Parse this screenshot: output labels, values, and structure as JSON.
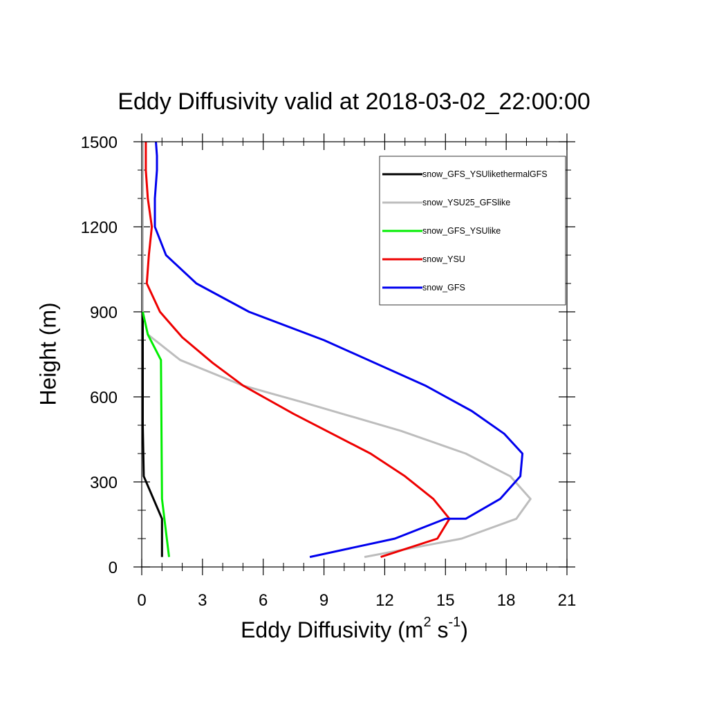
{
  "chart_data": {
    "type": "line",
    "title": "Eddy Diffusivity valid at 2018-03-02_22:00:00",
    "xlabel": {
      "text": "Eddy Diffusivity (m",
      "sup1": "2",
      "mid": " s",
      "sup2": "-1",
      "end": ")"
    },
    "ylabel": "Height (m)",
    "xlim": [
      0,
      21
    ],
    "ylim": [
      0,
      1500
    ],
    "xticks": [
      0,
      3,
      6,
      9,
      12,
      15,
      18,
      21
    ],
    "xtick_labels": [
      "0",
      "3",
      "6",
      "9",
      "12",
      "15",
      "18",
      "21"
    ],
    "yticks": [
      0,
      300,
      600,
      900,
      1200,
      1500
    ],
    "ytick_labels": [
      "0",
      "300",
      "600",
      "900",
      "1200",
      "1500"
    ],
    "grid": false,
    "legend_position": "top-right",
    "series": [
      {
        "name": "snow_GFS_YSUlikethermalGFS",
        "color": "#000000",
        "points": [
          [
            1.0,
            35
          ],
          [
            1.0,
            170
          ],
          [
            0.1,
            320
          ],
          [
            0.05,
            500
          ],
          [
            0.05,
            900
          ],
          [
            0.05,
            1500
          ]
        ]
      },
      {
        "name": "snow_YSU25_GFSlike",
        "color": "#bdbdbd",
        "points": [
          [
            11.0,
            35
          ],
          [
            15.8,
            100
          ],
          [
            18.5,
            170
          ],
          [
            19.2,
            240
          ],
          [
            18.2,
            320
          ],
          [
            16.0,
            400
          ],
          [
            12.8,
            480
          ],
          [
            8.0,
            580
          ],
          [
            5.0,
            640
          ],
          [
            1.9,
            730
          ],
          [
            0.3,
            820
          ],
          [
            0.05,
            900
          ],
          [
            0.05,
            1500
          ]
        ]
      },
      {
        "name": "snow_GFS_YSUlike",
        "color": "#00ee00",
        "points": [
          [
            1.35,
            35
          ],
          [
            1.0,
            240
          ],
          [
            0.95,
            730
          ],
          [
            0.3,
            820
          ],
          [
            0.05,
            900
          ]
        ]
      },
      {
        "name": "snow_YSU",
        "color": "#ee0000",
        "points": [
          [
            11.8,
            35
          ],
          [
            14.6,
            100
          ],
          [
            15.2,
            170
          ],
          [
            14.4,
            240
          ],
          [
            13.0,
            320
          ],
          [
            11.3,
            400
          ],
          [
            7.5,
            540
          ],
          [
            5.0,
            640
          ],
          [
            3.5,
            720
          ],
          [
            2.0,
            810
          ],
          [
            0.9,
            900
          ],
          [
            0.25,
            1000
          ],
          [
            0.35,
            1100
          ],
          [
            0.5,
            1200
          ],
          [
            0.3,
            1300
          ],
          [
            0.2,
            1400
          ],
          [
            0.2,
            1500
          ]
        ]
      },
      {
        "name": "snow_GFS",
        "color": "#0000ee",
        "points": [
          [
            8.3,
            35
          ],
          [
            12.5,
            100
          ],
          [
            15.0,
            170
          ],
          [
            16.0,
            170
          ],
          [
            17.7,
            240
          ],
          [
            18.7,
            320
          ],
          [
            18.8,
            400
          ],
          [
            17.9,
            470
          ],
          [
            16.3,
            550
          ],
          [
            14.0,
            640
          ],
          [
            9.0,
            800
          ],
          [
            5.3,
            900
          ],
          [
            2.7,
            1000
          ],
          [
            1.2,
            1100
          ],
          [
            0.65,
            1200
          ],
          [
            0.65,
            1300
          ],
          [
            0.75,
            1400
          ],
          [
            0.75,
            1450
          ],
          [
            0.7,
            1500
          ]
        ]
      }
    ]
  }
}
